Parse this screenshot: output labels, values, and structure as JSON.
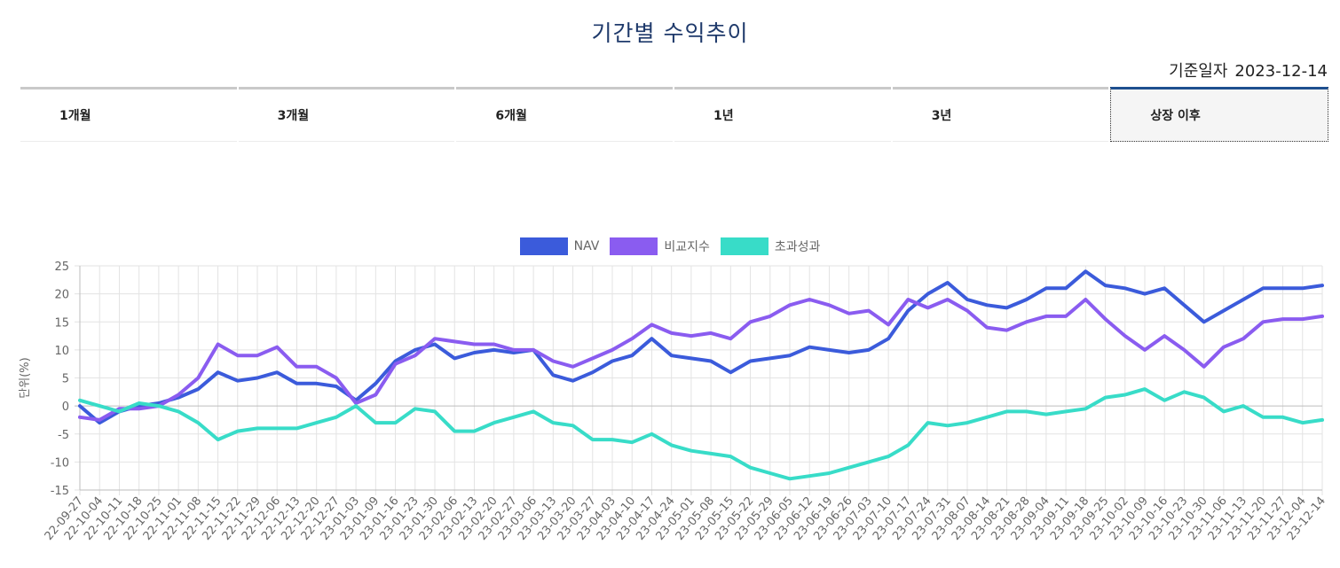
{
  "header": {
    "title": "기간별 수익추이",
    "date_label": "기준일자",
    "date_value": "2023-12-14"
  },
  "tabs": [
    {
      "label": "1개월",
      "active": false
    },
    {
      "label": "3개월",
      "active": false
    },
    {
      "label": "6개월",
      "active": false
    },
    {
      "label": "1년",
      "active": false
    },
    {
      "label": "3년",
      "active": false
    },
    {
      "label": "상장 이후",
      "active": true
    }
  ],
  "chart_data": {
    "type": "line",
    "ylabel": "단위(%)",
    "ylim": [
      -15,
      25
    ],
    "yticks": [
      25,
      20,
      15,
      10,
      5,
      0,
      -5,
      -10,
      -15
    ],
    "grid": true,
    "legend_position": "top-center",
    "x": [
      "22-09-27",
      "22-10-04",
      "22-10-11",
      "22-10-18",
      "22-10-25",
      "22-11-01",
      "22-11-08",
      "22-11-15",
      "22-11-22",
      "22-11-29",
      "22-12-06",
      "22-12-13",
      "22-12-20",
      "22-12-27",
      "23-01-03",
      "23-01-09",
      "23-01-16",
      "23-01-23",
      "23-01-30",
      "23-02-06",
      "23-02-13",
      "23-02-20",
      "23-02-27",
      "23-03-06",
      "23-03-13",
      "23-03-20",
      "23-03-27",
      "23-04-03",
      "23-04-10",
      "23-04-17",
      "23-04-24",
      "23-05-01",
      "23-05-08",
      "23-05-15",
      "23-05-22",
      "23-05-29",
      "23-06-05",
      "23-06-12",
      "23-06-19",
      "23-06-26",
      "23-07-03",
      "23-07-10",
      "23-07-17",
      "23-07-24",
      "23-07-31",
      "23-08-07",
      "23-08-14",
      "23-08-21",
      "23-08-28",
      "23-09-04",
      "23-09-11",
      "23-09-18",
      "23-09-25",
      "23-10-02",
      "23-10-09",
      "23-10-16",
      "23-10-23",
      "23-10-30",
      "23-11-06",
      "23-11-13",
      "23-11-20",
      "23-11-27",
      "23-12-04",
      "23-12-14"
    ],
    "series": [
      {
        "name": "NAV",
        "color": "#3b5bdb",
        "values": [
          0,
          -3,
          -1,
          0,
          0.5,
          1.5,
          3,
          6,
          4.5,
          5,
          6,
          4,
          4,
          3.5,
          1,
          4,
          8,
          10,
          11,
          8.5,
          9.5,
          10,
          9.5,
          10,
          5.5,
          4.5,
          6,
          8,
          9,
          12,
          9,
          8.5,
          8,
          6,
          8,
          8.5,
          9,
          10.5,
          10,
          9.5,
          10,
          12,
          17,
          20,
          22,
          19,
          18,
          17.5,
          19,
          21,
          21,
          24,
          21.5,
          21,
          20,
          21,
          18,
          15,
          17,
          19,
          21,
          21,
          21,
          21.5
        ]
      },
      {
        "name": "비교지수",
        "color": "#8a5cf0",
        "values": [
          -2,
          -2.5,
          -0.5,
          -0.5,
          0,
          2,
          5,
          11,
          9,
          9,
          10.5,
          7,
          7,
          5,
          0.5,
          2,
          7.5,
          9,
          12,
          11.5,
          11,
          11,
          10,
          10,
          8,
          7,
          8.5,
          10,
          12,
          14.5,
          13,
          12.5,
          13,
          12,
          15,
          16,
          18,
          19,
          18,
          16.5,
          17,
          14.5,
          19,
          17.5,
          19,
          17,
          14,
          13.5,
          15,
          16,
          16,
          19,
          15.5,
          12.5,
          10,
          12.5,
          10,
          7,
          10.5,
          12,
          15,
          15.5,
          15.5,
          16
        ]
      },
      {
        "name": "초과성과",
        "color": "#38dcc8",
        "values": [
          1,
          0,
          -1,
          0.5,
          0,
          -1,
          -3,
          -6,
          -4.5,
          -4,
          -4,
          -4,
          -3,
          -2,
          0,
          -3,
          -3,
          -0.5,
          -1,
          -4.5,
          -4.5,
          -3,
          -2,
          -1,
          -3,
          -3.5,
          -6,
          -6,
          -6.5,
          -5,
          -7,
          -8,
          -8.5,
          -9,
          -11,
          -12,
          -13,
          -12.5,
          -12,
          -11,
          -10,
          -9,
          -7,
          -3,
          -3.5,
          -3,
          -2,
          -1,
          -1,
          -1.5,
          -1,
          -0.5,
          1.5,
          2,
          3,
          1,
          2.5,
          1.5,
          -1,
          0,
          -2,
          -2,
          -3,
          -2.5
        ]
      }
    ]
  }
}
